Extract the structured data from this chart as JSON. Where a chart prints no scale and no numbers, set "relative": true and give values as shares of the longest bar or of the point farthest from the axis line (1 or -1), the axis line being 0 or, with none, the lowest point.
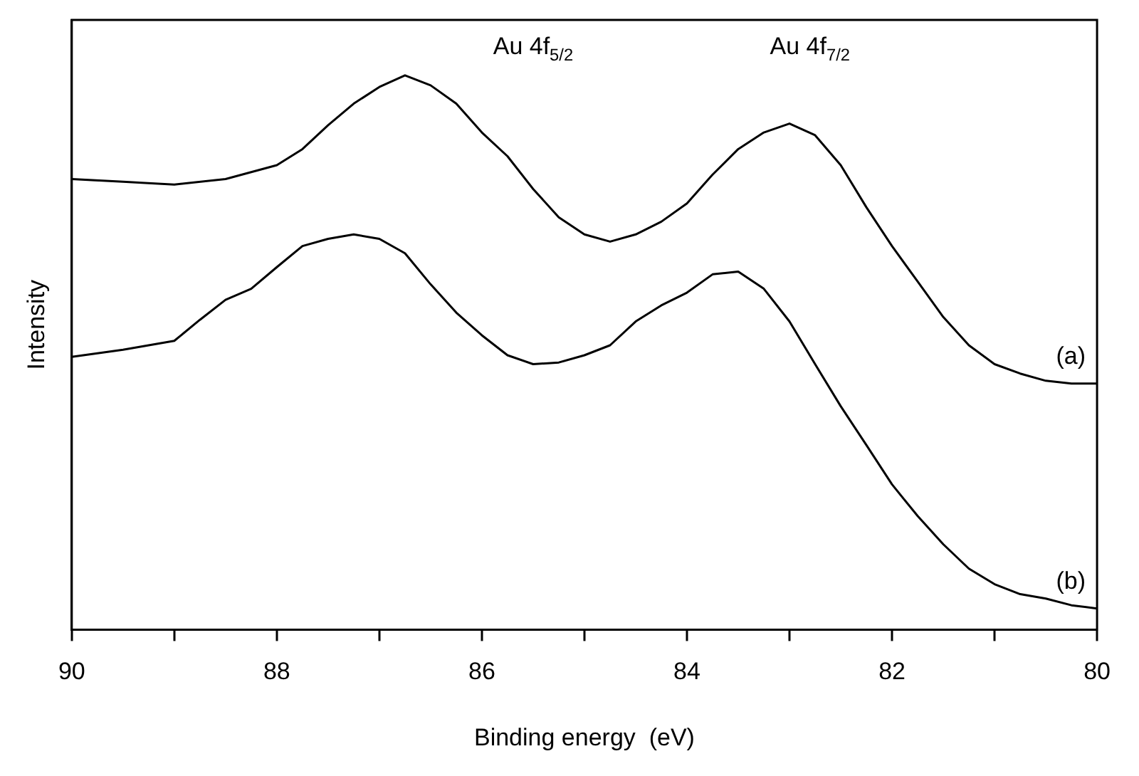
{
  "chart_data": {
    "type": "line",
    "xlabel": "Binding energy  (eV)",
    "ylabel": "Intensity",
    "relative": true,
    "xlim": [
      90,
      80
    ],
    "xticks": [
      90,
      {
        "value": 89,
        "label": null
      },
      88,
      {
        "value": 87,
        "label": null
      },
      86,
      {
        "value": 85,
        "label": null
      },
      84,
      {
        "value": 83,
        "label": null
      },
      82,
      {
        "value": 81,
        "label": null
      },
      80
    ],
    "legend": false,
    "marker": "none",
    "line_style": "solid",
    "annotations": [
      "Au 4f$_{5/2}$",
      "Au 4f$_{7/2}$"
    ],
    "series": [
      {
        "name": "(a)",
        "color": "#000000",
        "x": [
          90,
          89.5,
          89,
          88.5,
          88,
          87.75,
          87.5,
          87.25,
          87,
          86.75,
          86.5,
          86.25,
          86,
          85.75,
          85.5,
          85.25,
          85,
          84.75,
          84.5,
          84.25,
          84,
          83.75,
          83.5,
          83.25,
          83,
          82.75,
          82.5,
          82.25,
          82,
          81.75,
          81.5,
          81.25,
          81,
          80.75,
          80.5,
          80.25,
          80
        ],
        "values": [
          0.813,
          0.808,
          0.803,
          0.813,
          0.838,
          0.867,
          0.91,
          0.949,
          0.979,
          1.0,
          0.982,
          0.949,
          0.897,
          0.854,
          0.795,
          0.744,
          0.713,
          0.7,
          0.713,
          0.736,
          0.769,
          0.821,
          0.867,
          0.897,
          0.913,
          0.892,
          0.838,
          0.762,
          0.692,
          0.628,
          0.564,
          0.513,
          0.479,
          0.462,
          0.449,
          0.444,
          0.444
        ]
      },
      {
        "name": "(b)",
        "color": "#000000",
        "x": [
          90,
          89.5,
          89,
          88.75,
          88.5,
          88.25,
          88,
          87.75,
          87.5,
          87.25,
          87,
          86.75,
          86.5,
          86.25,
          86,
          85.75,
          85.5,
          85.25,
          85,
          84.75,
          84.5,
          84.25,
          84,
          83.75,
          83.5,
          83.25,
          83,
          82.75,
          82.5,
          82.25,
          82,
          81.75,
          81.5,
          81.25,
          81,
          80.75,
          80.5,
          80.25,
          80
        ],
        "values": [
          0.492,
          0.505,
          0.521,
          0.559,
          0.595,
          0.615,
          0.654,
          0.692,
          0.705,
          0.713,
          0.705,
          0.679,
          0.623,
          0.572,
          0.531,
          0.495,
          0.479,
          0.482,
          0.495,
          0.513,
          0.556,
          0.585,
          0.608,
          0.641,
          0.646,
          0.615,
          0.556,
          0.479,
          0.403,
          0.333,
          0.262,
          0.205,
          0.154,
          0.11,
          0.082,
          0.064,
          0.056,
          0.044,
          0.038
        ]
      }
    ]
  }
}
